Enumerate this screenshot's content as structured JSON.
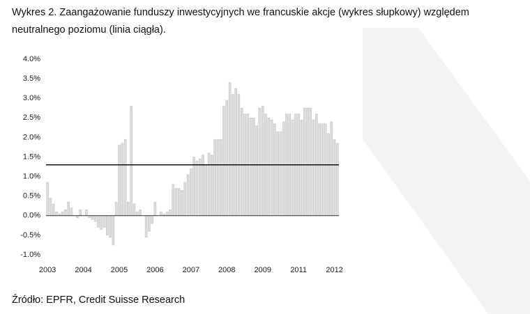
{
  "chart_data": {
    "type": "bar",
    "title": [
      "Wykres 2. Zaangażowanie funduszy inwestycyjnych we francuskie akcje (wykres słupkowy) względem",
      "neutralnego poziomu (linia ciągła)."
    ],
    "source": "Źródło:  EPFR, Credit Suisse Research",
    "categories": [
      "2003",
      null,
      null,
      null,
      null,
      null,
      null,
      null,
      null,
      null,
      null,
      null,
      "2004",
      null,
      null,
      null,
      null,
      null,
      null,
      null,
      null,
      null,
      null,
      null,
      "2005",
      null,
      null,
      null,
      null,
      null,
      null,
      null,
      null,
      null,
      null,
      null,
      "2006",
      null,
      null,
      null,
      null,
      null,
      null,
      null,
      null,
      null,
      null,
      null,
      "2007",
      null,
      null,
      null,
      null,
      null,
      null,
      null,
      null,
      null,
      null,
      null,
      "2008",
      null,
      null,
      null,
      null,
      null,
      null,
      null,
      null,
      null,
      null,
      null,
      "2009",
      null,
      null,
      null,
      null,
      null,
      null,
      null,
      null,
      null,
      null,
      null,
      "2011",
      null,
      null,
      null,
      null,
      null,
      null,
      null,
      null,
      null,
      null,
      null,
      "2012",
      null
    ],
    "values": [
      0.85,
      0.45,
      0.3,
      0.1,
      0.05,
      0.1,
      0.15,
      0.35,
      0.2,
      0,
      -0.05,
      0.15,
      0,
      0.15,
      -0.05,
      -0.1,
      -0.15,
      -0.3,
      -0.35,
      -0.3,
      -0.5,
      -0.55,
      -0.75,
      0.35,
      1.8,
      1.85,
      1.95,
      0.35,
      2.8,
      0.3,
      0.1,
      0.15,
      0,
      -0.55,
      -0.4,
      -0.2,
      0.35,
      0,
      0.1,
      0.05,
      0.1,
      0.15,
      0.8,
      0.7,
      0.7,
      0.65,
      0.85,
      1.05,
      1.2,
      1.5,
      1.4,
      1.45,
      1.55,
      1.3,
      1.6,
      1.55,
      1.95,
      1.95,
      1.95,
      2.8,
      2.95,
      3.4,
      3.1,
      3.25,
      3.1,
      2.75,
      2.6,
      2.6,
      2.5,
      2.5,
      2.3,
      2.75,
      2.8,
      2.6,
      2.5,
      2.45,
      2.35,
      2.15,
      2.15,
      2.4,
      2.6,
      2.6,
      2.45,
      2.6,
      2.6,
      2.45,
      2.75,
      2.75,
      2.75,
      2.45,
      2.6,
      2.35,
      2.35,
      2.35,
      2.1,
      2.4,
      1.95,
      1.85
    ],
    "color": "#dcdcdc",
    "reference_line": 1.3,
    "ylim": [
      -1,
      4
    ],
    "yticks": [
      {
        "value": -1,
        "label": "-1.0%"
      },
      {
        "value": -0.5,
        "label": "-0.5%"
      },
      {
        "value": 0,
        "label": "0.0%"
      },
      {
        "value": 0.5,
        "label": "0.5%"
      },
      {
        "value": 1,
        "label": "1.0%"
      },
      {
        "value": 1.5,
        "label": "1.5%"
      },
      {
        "value": 2,
        "label": "2.0%"
      },
      {
        "value": 2.5,
        "label": "2.5%"
      },
      {
        "value": 3,
        "label": "3.0%"
      },
      {
        "value": 3.5,
        "label": "3.5%"
      },
      {
        "value": 4,
        "label": "4.0%"
      }
    ]
  }
}
